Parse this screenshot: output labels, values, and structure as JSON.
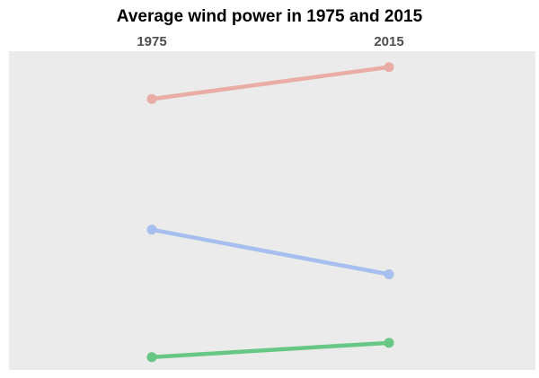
{
  "chart_data": {
    "type": "line",
    "title": "Average wind power in 1975 and 2015",
    "subtitle": "",
    "xlabel": "",
    "ylabel": "",
    "x": [
      "1975",
      "2015"
    ],
    "ylim": [
      0,
      100
    ],
    "grid": false,
    "legend": "none",
    "background": "#ebebeb",
    "series": [
      {
        "values": [
          85,
          95
        ],
        "color": "#eaada6"
      },
      {
        "values": [
          44,
          30
        ],
        "color": "#a6bfee"
      },
      {
        "values": [
          4,
          8.5
        ],
        "color": "#66c884"
      }
    ]
  }
}
